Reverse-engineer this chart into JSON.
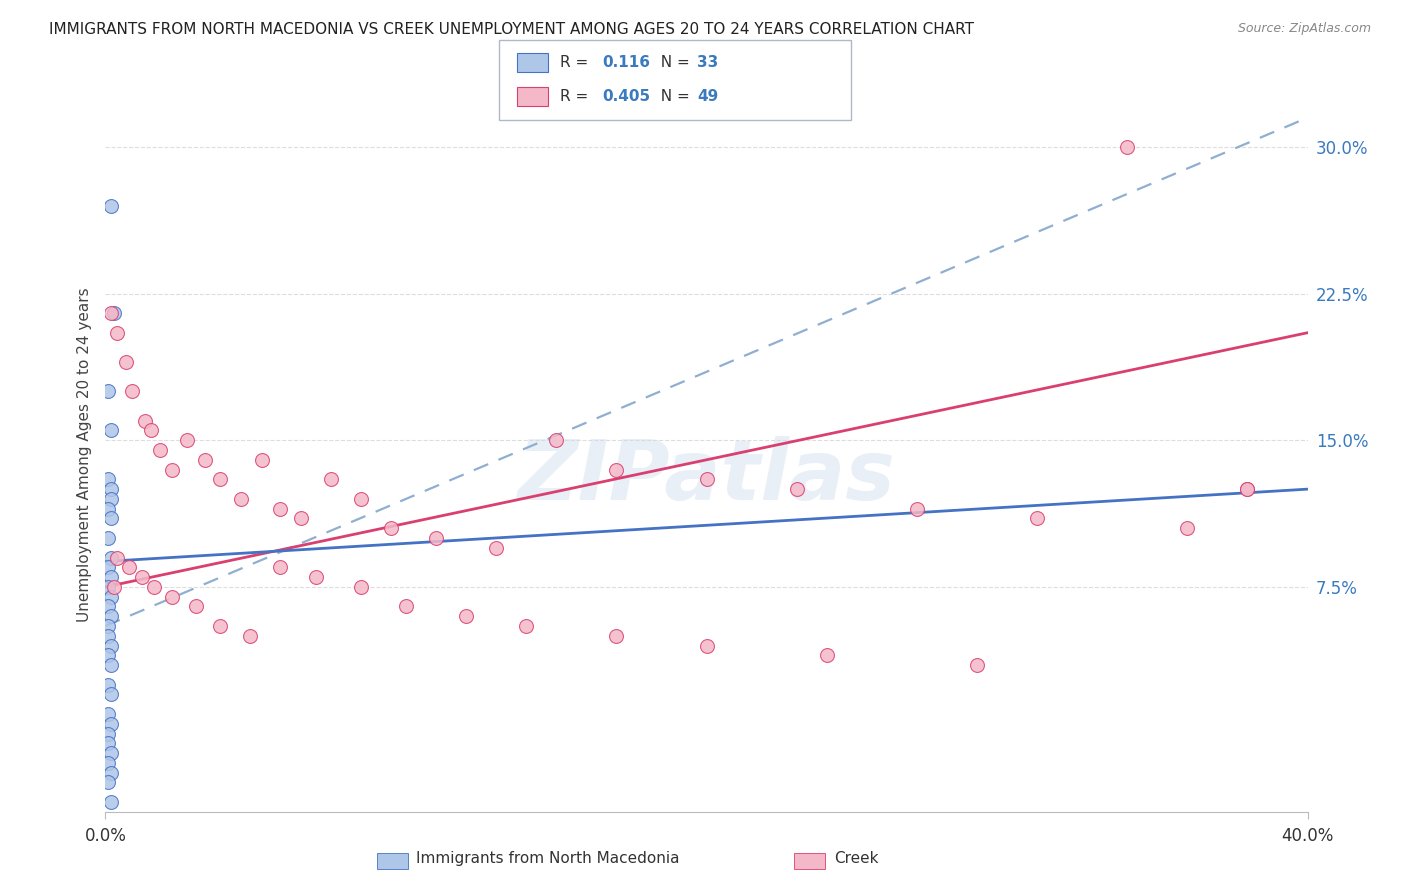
{
  "title": "IMMIGRANTS FROM NORTH MACEDONIA VS CREEK UNEMPLOYMENT AMONG AGES 20 TO 24 YEARS CORRELATION CHART",
  "source": "Source: ZipAtlas.com",
  "ylabel": "Unemployment Among Ages 20 to 24 years",
  "xlim": [
    0.0,
    0.4
  ],
  "ylim": [
    -0.04,
    0.325
  ],
  "yticks": [
    0.075,
    0.15,
    0.225,
    0.3
  ],
  "ytick_labels": [
    "7.5%",
    "15.0%",
    "22.5%",
    "30.0%"
  ],
  "watermark": "ZIPatlas",
  "blue_scatter_x": [
    0.002,
    0.003,
    0.001,
    0.002,
    0.001,
    0.002,
    0.002,
    0.001,
    0.002,
    0.001,
    0.002,
    0.001,
    0.002,
    0.001,
    0.002,
    0.001,
    0.002,
    0.001,
    0.001,
    0.002,
    0.001,
    0.002,
    0.001,
    0.002,
    0.001,
    0.002,
    0.001,
    0.001,
    0.002,
    0.001,
    0.002,
    0.001,
    0.002
  ],
  "blue_scatter_y": [
    0.27,
    0.215,
    0.175,
    0.155,
    0.13,
    0.125,
    0.12,
    0.115,
    0.11,
    0.1,
    0.09,
    0.085,
    0.08,
    0.075,
    0.07,
    0.065,
    0.06,
    0.055,
    0.05,
    0.045,
    0.04,
    0.035,
    0.025,
    0.02,
    0.01,
    0.005,
    0.0,
    -0.005,
    -0.01,
    -0.015,
    -0.02,
    -0.025,
    -0.035
  ],
  "pink_scatter_x": [
    0.002,
    0.004,
    0.007,
    0.009,
    0.013,
    0.015,
    0.018,
    0.022,
    0.027,
    0.033,
    0.038,
    0.045,
    0.052,
    0.058,
    0.065,
    0.075,
    0.085,
    0.095,
    0.11,
    0.13,
    0.15,
    0.17,
    0.2,
    0.23,
    0.27,
    0.31,
    0.36,
    0.38,
    0.004,
    0.008,
    0.012,
    0.016,
    0.022,
    0.03,
    0.038,
    0.048,
    0.058,
    0.07,
    0.085,
    0.1,
    0.12,
    0.14,
    0.17,
    0.2,
    0.24,
    0.29,
    0.34,
    0.38,
    0.003
  ],
  "pink_scatter_y": [
    0.215,
    0.205,
    0.19,
    0.175,
    0.16,
    0.155,
    0.145,
    0.135,
    0.15,
    0.14,
    0.13,
    0.12,
    0.14,
    0.115,
    0.11,
    0.13,
    0.12,
    0.105,
    0.1,
    0.095,
    0.15,
    0.135,
    0.13,
    0.125,
    0.115,
    0.11,
    0.105,
    0.125,
    0.09,
    0.085,
    0.08,
    0.075,
    0.07,
    0.065,
    0.055,
    0.05,
    0.085,
    0.08,
    0.075,
    0.065,
    0.06,
    0.055,
    0.05,
    0.045,
    0.04,
    0.035,
    0.3,
    0.125,
    0.075
  ],
  "blue_line": {
    "x0": 0.0,
    "x1": 0.4,
    "y0": 0.088,
    "y1": 0.125
  },
  "pink_line": {
    "x0": 0.0,
    "x1": 0.4,
    "y0": 0.075,
    "y1": 0.205
  },
  "dashed_line": {
    "x0": 0.0,
    "x1": 0.4,
    "y0": 0.055,
    "y1": 0.315
  },
  "blue_color": "#aec6e8",
  "pink_color": "#f4b8c8",
  "blue_line_color": "#4472c4",
  "pink_line_color": "#d94070",
  "dashed_line_color": "#90afd0",
  "background_color": "#ffffff",
  "grid_color": "#dddddd",
  "r_value_color": "#3a7abf",
  "n_value_color": "#3a7abf",
  "legend_r1": "0.116",
  "legend_n1": "33",
  "legend_r2": "0.405",
  "legend_n2": "49"
}
